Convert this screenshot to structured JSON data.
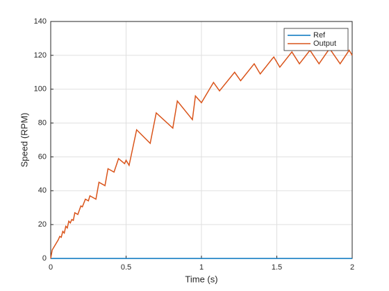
{
  "chart_data": {
    "type": "line",
    "xlabel": "Time (s)",
    "ylabel": "Speed (RPM)",
    "xlim": [
      0,
      2
    ],
    "ylim": [
      0,
      140
    ],
    "xticks": [
      0,
      0.5,
      1,
      1.5,
      2
    ],
    "yticks": [
      0,
      20,
      40,
      60,
      80,
      100,
      120,
      140
    ],
    "grid": true,
    "legend": "northeast",
    "series": [
      {
        "name": "Ref",
        "color": "#0072bd",
        "x": [
          0,
          2
        ],
        "values": [
          0,
          0
        ]
      },
      {
        "name": "Output",
        "color": "#d95319",
        "x": [
          0,
          0.01,
          0.03,
          0.05,
          0.06,
          0.07,
          0.08,
          0.09,
          0.1,
          0.11,
          0.12,
          0.13,
          0.14,
          0.15,
          0.16,
          0.18,
          0.2,
          0.21,
          0.23,
          0.25,
          0.26,
          0.3,
          0.32,
          0.36,
          0.38,
          0.42,
          0.45,
          0.49,
          0.5,
          0.52,
          0.57,
          0.66,
          0.7,
          0.81,
          0.84,
          0.94,
          0.96,
          1.0,
          1.08,
          1.12,
          1.22,
          1.26,
          1.35,
          1.39,
          1.47,
          1.48,
          1.52,
          1.6,
          1.65,
          1.72,
          1.78,
          1.85,
          1.92,
          1.98,
          2.0
        ],
        "values": [
          0,
          5,
          8,
          11,
          13,
          12.5,
          16,
          15,
          19,
          18,
          22,
          21,
          23,
          22.5,
          27,
          26,
          31,
          30.5,
          35,
          34,
          37,
          35,
          45,
          43,
          53,
          51,
          59,
          56,
          58,
          55,
          76,
          68,
          86,
          77,
          93,
          82,
          96,
          92,
          104,
          99,
          110,
          105,
          115,
          109,
          118,
          119,
          113,
          122,
          115,
          123,
          115,
          124,
          115,
          123,
          120
        ]
      }
    ]
  }
}
